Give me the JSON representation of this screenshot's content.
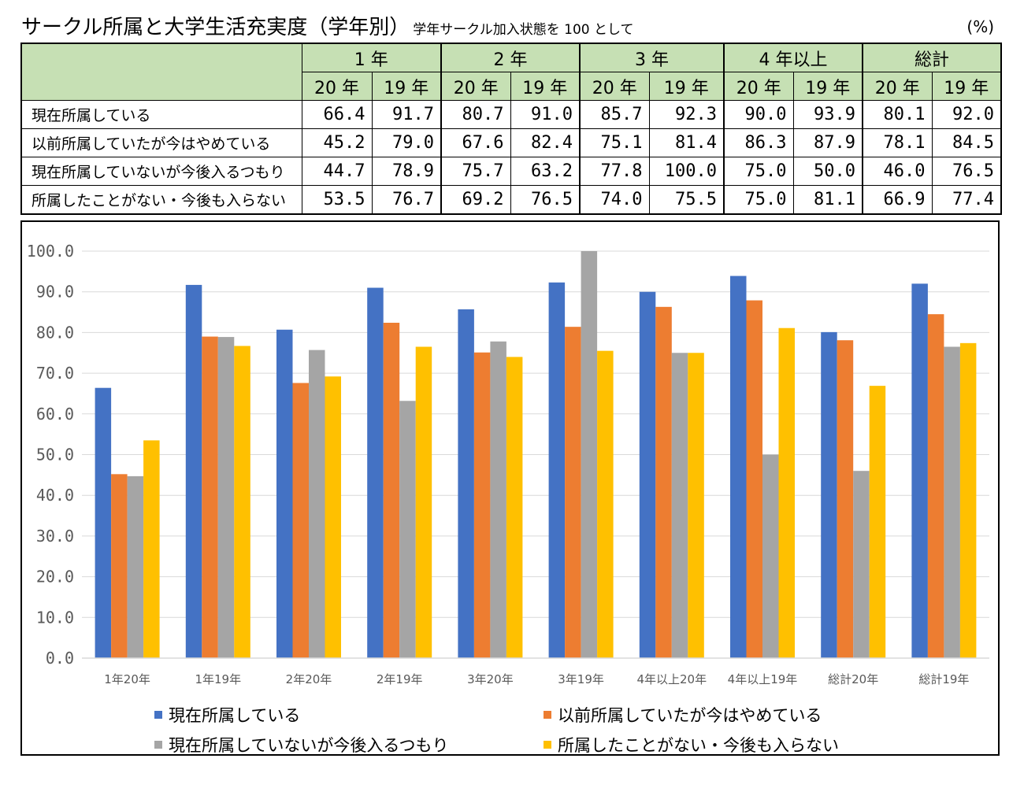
{
  "title": "サークル所属と大学生活充実度（学年別）",
  "subtitle": "学年サークル加入状態を 100 として",
  "unit": "(%)",
  "table": {
    "groups": [
      "1 年",
      "2 年",
      "3 年",
      "4 年以上",
      "総計"
    ],
    "years": [
      "20 年",
      "19 年"
    ],
    "rows": [
      {
        "label": "現在所属している",
        "values": [
          "66.4",
          "91.7",
          "80.7",
          "91.0",
          "85.7",
          "92.3",
          "90.0",
          "93.9",
          "80.1",
          "92.0"
        ]
      },
      {
        "label": "以前所属していたが今はやめている",
        "values": [
          "45.2",
          "79.0",
          "67.6",
          "82.4",
          "75.1",
          "81.4",
          "86.3",
          "87.9",
          "78.1",
          "84.5"
        ]
      },
      {
        "label": "現在所属していないが今後入るつもり",
        "values": [
          "44.7",
          "78.9",
          "75.7",
          "63.2",
          "77.8",
          "100.0",
          "75.0",
          "50.0",
          "46.0",
          "76.5"
        ]
      },
      {
        "label": "所属したことがない・今後も入らない",
        "values": [
          "53.5",
          "76.7",
          "69.2",
          "76.5",
          "74.0",
          "75.5",
          "75.0",
          "81.1",
          "66.9",
          "77.4"
        ]
      }
    ]
  },
  "chart_data": {
    "type": "bar",
    "categories": [
      "1年20年",
      "1年19年",
      "2年20年",
      "2年19年",
      "3年20年",
      "3年19年",
      "4年以上20年",
      "4年以上19年",
      "総計20年",
      "総計19年"
    ],
    "series": [
      {
        "name": "現在所属している",
        "color": "#4472c4",
        "values": [
          66.4,
          91.7,
          80.7,
          91.0,
          85.7,
          92.3,
          90.0,
          93.9,
          80.1,
          92.0
        ]
      },
      {
        "name": "以前所属していたが今はやめている",
        "color": "#ed7d31",
        "values": [
          45.2,
          79.0,
          67.6,
          82.4,
          75.1,
          81.4,
          86.3,
          87.9,
          78.1,
          84.5
        ]
      },
      {
        "name": "現在所属していないが今後入るつもり",
        "color": "#a5a5a5",
        "values": [
          44.7,
          78.9,
          75.7,
          63.2,
          77.8,
          100.0,
          75.0,
          50.0,
          46.0,
          76.5
        ]
      },
      {
        "name": "所属したことがない・今後も入らない",
        "color": "#ffc000",
        "values": [
          53.5,
          76.7,
          69.2,
          76.5,
          74.0,
          75.5,
          75.0,
          81.1,
          66.9,
          77.4
        ]
      }
    ],
    "yticks": [
      "0.0",
      "10.0",
      "20.0",
      "30.0",
      "40.0",
      "50.0",
      "60.0",
      "70.0",
      "80.0",
      "90.0",
      "100.0"
    ],
    "ylim": [
      0,
      100
    ],
    "grid": true,
    "legend": "bottom"
  }
}
